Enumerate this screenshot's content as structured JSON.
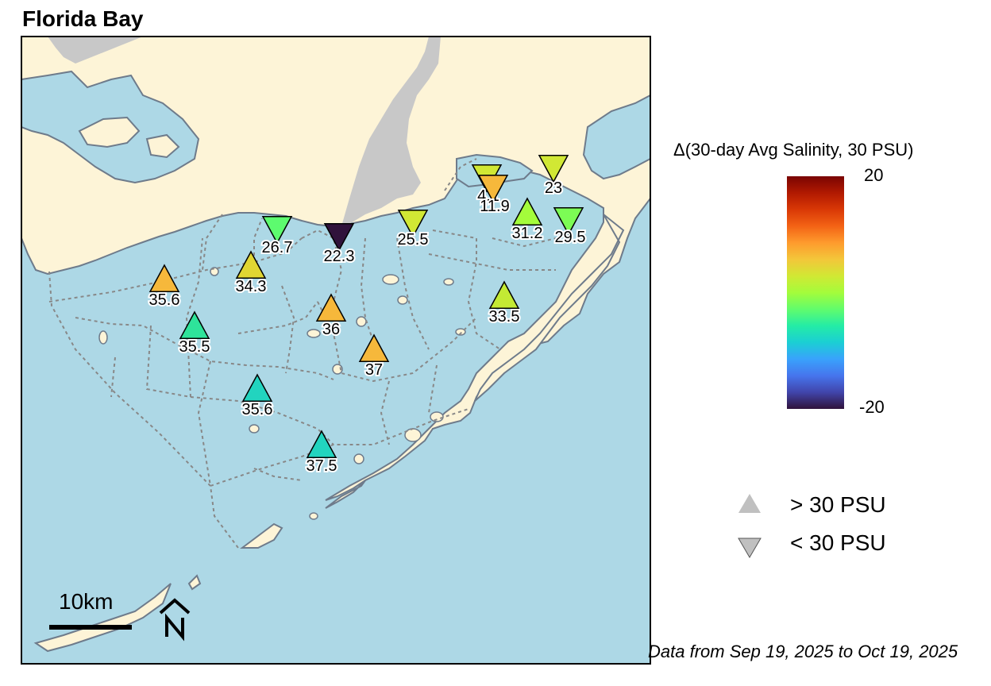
{
  "title": "Florida Bay",
  "legend": {
    "colorbar_title": "Δ(30-day Avg Salinity, 30 PSU)",
    "colorbar_max": "20",
    "colorbar_min": "-20",
    "shape_up_label": "> 30 PSU",
    "shape_down_label": "< 30 PSU",
    "colorscale": "turbo"
  },
  "scale_bar_label": "10km",
  "north_arrow": "north-arrow-icon",
  "source_note": "Data from Sep 19, 2025 to Oct 19, 2025",
  "colors": {
    "water": "#add8e6",
    "land": "#fdf4d7",
    "mainland_gray": "#c8c8c8",
    "shoreline": "#6e7b8b",
    "zone_lines": "#888888"
  },
  "stations": [
    {
      "label": "35.6",
      "value": 35.6,
      "direction": "up",
      "color": "#f6b83b"
    },
    {
      "label": "34.3",
      "value": 34.3,
      "direction": "up",
      "color": "#e0d633"
    },
    {
      "label": "35.5",
      "value": 35.5,
      "direction": "up",
      "color": "#2ee39a"
    },
    {
      "label": "36",
      "value": 36,
      "direction": "up",
      "color": "#f6b83b"
    },
    {
      "label": "37",
      "value": 37,
      "direction": "up",
      "color": "#f6b83b"
    },
    {
      "label": "35.6",
      "value": 35.6,
      "direction": "up",
      "color": "#22d4bf"
    },
    {
      "label": "37.5",
      "value": 37.5,
      "direction": "up",
      "color": "#22d4bf"
    },
    {
      "label": "33.5",
      "value": 33.5,
      "direction": "up",
      "color": "#c3ea34"
    },
    {
      "label": "31.2",
      "value": 31.2,
      "direction": "up",
      "color": "#a4fc3b"
    },
    {
      "label": "26.7",
      "value": 26.7,
      "direction": "down",
      "color": "#5dfb6f"
    },
    {
      "label": "22.3",
      "value": 22.3,
      "direction": "down",
      "color": "#30123b"
    },
    {
      "label": "25.5",
      "value": 25.5,
      "direction": "down",
      "color": "#d1e834"
    },
    {
      "label": "4.1",
      "value": 4.1,
      "direction": "down",
      "color": "#d1e834"
    },
    {
      "label": "11.9",
      "value": 11.9,
      "direction": "down",
      "color": "#f6b83b"
    },
    {
      "label": "23",
      "value": 23,
      "direction": "down",
      "color": "#d1e834"
    },
    {
      "label": "29.5",
      "value": 29.5,
      "direction": "down",
      "color": "#7cfc55"
    }
  ]
}
